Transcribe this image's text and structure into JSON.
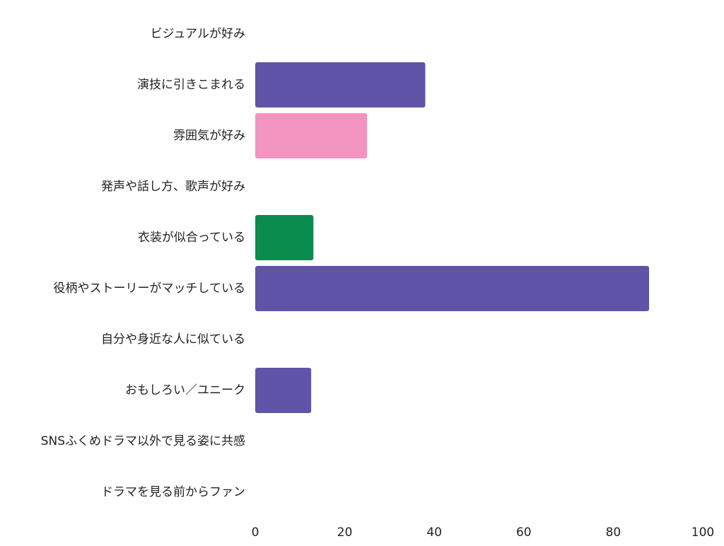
{
  "chart_data": {
    "type": "bar",
    "orientation": "horizontal",
    "title": "",
    "xlabel": "",
    "ylabel": "",
    "xlim": [
      0,
      100
    ],
    "x_ticks": [
      "0",
      "20",
      "40",
      "60",
      "80",
      "100"
    ],
    "grid": false,
    "legend": "none",
    "categories": [
      "ビジュアルが好み",
      "演技に引きこまれる",
      "雰囲気が好み",
      "発声や話し方、歌声が好み",
      "衣装が似合っている",
      "役柄やストーリーがマッチしている",
      "自分や身近な人に似ている",
      "おもしろい／ユニーク",
      "SNSふくめドラマ以外で見る姿に共感",
      "ドラマを見る前からファン"
    ],
    "values": [
      0,
      38,
      25,
      0,
      13,
      88,
      0,
      12.5,
      0,
      0
    ],
    "colors": [
      "#6054a8",
      "#6054a8",
      "#f194c0",
      "#6054a8",
      "#098c4e",
      "#6054a8",
      "#6054a8",
      "#6054a8",
      "#6054a8",
      "#6054a8"
    ]
  }
}
